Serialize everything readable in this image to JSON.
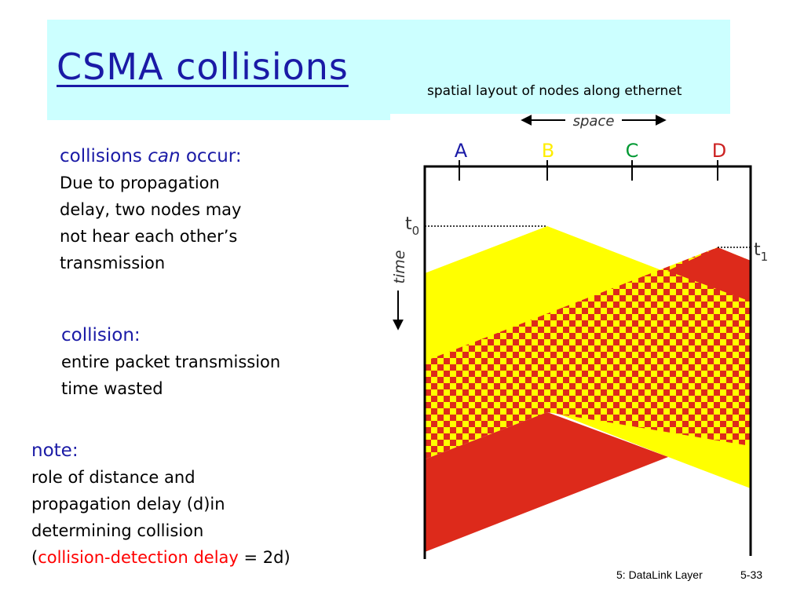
{
  "title": "CSMA collisions",
  "subtitle": "spatial layout of nodes along ethernet",
  "block1": {
    "heading_before": "collisions ",
    "heading_italic": "can",
    "heading_after": " occur:",
    "lines": [
      "Due to propagation",
      "delay, two nodes may",
      "not hear each other’s",
      "transmission"
    ]
  },
  "block2": {
    "heading": "collision:",
    "lines": [
      "entire packet transmission",
      "time wasted"
    ]
  },
  "block3": {
    "heading": "note:",
    "lines": [
      "role of distance and",
      "propagation delay (d)in",
      "determining collision"
    ],
    "last_open": "(",
    "last_red": "collision-detection delay",
    "last_close": " = 2d)"
  },
  "diagram": {
    "space_label": "space",
    "time_label": "time",
    "t0_base": "t",
    "t0_sub": "0",
    "t1_base": "t",
    "t1_sub": "1",
    "nodes": [
      {
        "label": "A",
        "color": "#1a1aa6"
      },
      {
        "label": "B",
        "color": "#ffee00"
      },
      {
        "label": "C",
        "color": "#009933"
      },
      {
        "label": "D",
        "color": "#cc2222"
      }
    ],
    "colors": {
      "yellow": "#ffff00",
      "red": "#dd2a1b"
    }
  },
  "footer": {
    "chapter": "5: DataLink Layer",
    "page": "5-33"
  }
}
